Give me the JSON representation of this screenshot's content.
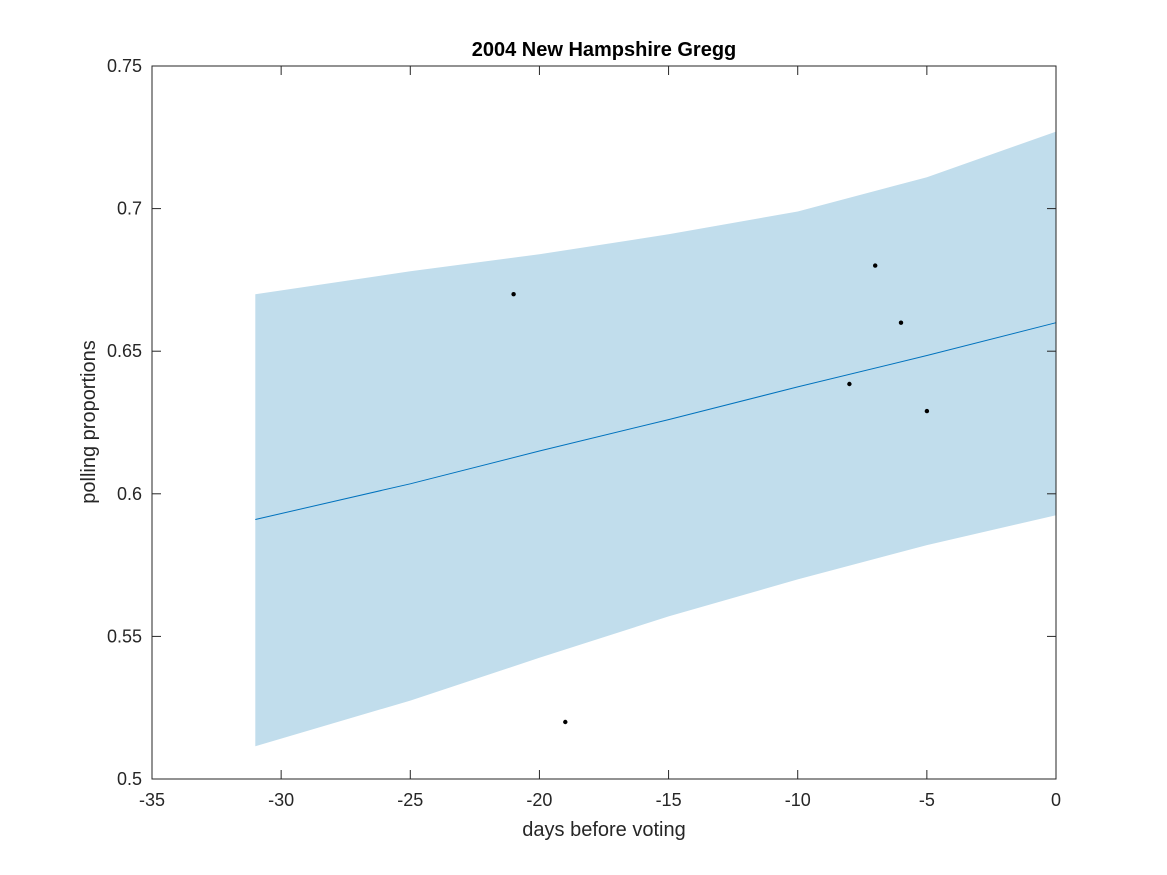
{
  "chart_data": {
    "type": "line",
    "title": "2004 New Hampshire Gregg",
    "xlabel": "days before voting",
    "ylabel": "polling proportions",
    "xlim": [
      -35,
      0
    ],
    "ylim": [
      0.5,
      0.75
    ],
    "xticks": [
      -35,
      -30,
      -25,
      -20,
      -15,
      -10,
      -5,
      0
    ],
    "xtick_labels": [
      "-35",
      "-30",
      "-25",
      "-20",
      "-15",
      "-10",
      "-5",
      "0"
    ],
    "yticks": [
      0.5,
      0.55,
      0.6,
      0.65,
      0.7,
      0.75
    ],
    "ytick_labels": [
      "0.5",
      "0.55",
      "0.6",
      "0.65",
      "0.7",
      "0.75"
    ],
    "grid": false,
    "fit_line": {
      "x": [
        -31,
        -25,
        -20,
        -15,
        -10,
        -5,
        0
      ],
      "y": [
        0.591,
        0.6035,
        0.615,
        0.626,
        0.6375,
        0.6485,
        0.66
      ],
      "color": "#0072BD"
    },
    "confidence_band": {
      "x": [
        -31,
        -25,
        -20,
        -15,
        -10,
        -5,
        0
      ],
      "upper": [
        0.67,
        0.678,
        0.684,
        0.691,
        0.699,
        0.711,
        0.727
      ],
      "lower": [
        0.5115,
        0.5275,
        0.5425,
        0.557,
        0.57,
        0.582,
        0.5925
      ],
      "color": "#C1DDEC"
    },
    "points": {
      "x": [
        -21,
        -19,
        -8,
        -7,
        -6,
        -5
      ],
      "y": [
        0.67,
        0.52,
        0.6385,
        0.68,
        0.66,
        0.629
      ],
      "color": "#000000"
    }
  }
}
